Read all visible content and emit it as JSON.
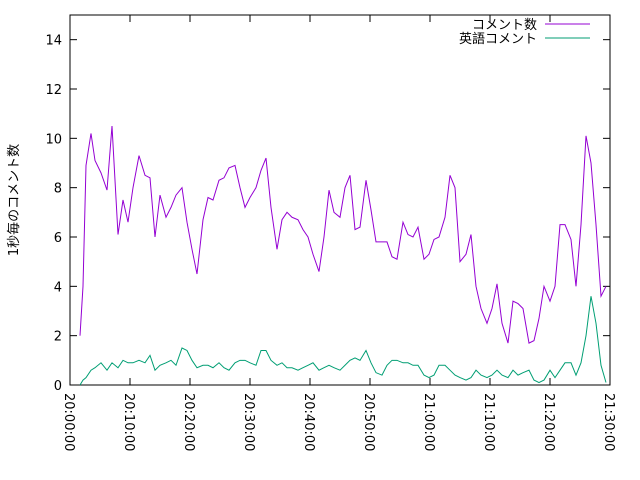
{
  "chart_data": {
    "type": "line",
    "ylabel": "1秒毎のコメント数",
    "xlim": [
      "20:00:00",
      "21:30:00"
    ],
    "xticks": [
      "20:00:00",
      "20:10:00",
      "20:20:00",
      "20:30:00",
      "20:40:00",
      "20:50:00",
      "21:00:00",
      "21:10:00",
      "21:20:00",
      "21:30:00"
    ],
    "ylim": [
      0,
      15
    ],
    "yticks": [
      0,
      2,
      4,
      6,
      8,
      10,
      12,
      14
    ],
    "legend": "top right",
    "x": [
      "20:01:40",
      "20:02:10",
      "20:02:40",
      "20:03:30",
      "20:04:10",
      "20:05:10",
      "20:06:10",
      "20:07:00",
      "20:08:00",
      "20:08:50",
      "20:09:40",
      "20:10:30",
      "20:11:30",
      "20:12:30",
      "20:13:20",
      "20:14:10",
      "20:15:00",
      "20:16:00",
      "20:16:50",
      "20:17:40",
      "20:18:40",
      "20:19:30",
      "20:20:20",
      "20:21:10",
      "20:22:10",
      "20:23:00",
      "20:23:50",
      "20:24:50",
      "20:25:40",
      "20:26:30",
      "20:27:30",
      "20:28:20",
      "20:29:10",
      "20:30:00",
      "20:31:00",
      "20:31:50",
      "20:32:40",
      "20:33:30",
      "20:34:30",
      "20:35:20",
      "20:36:10",
      "20:37:00",
      "20:38:00",
      "20:38:50",
      "20:39:40",
      "20:40:30",
      "20:41:30",
      "20:42:20",
      "20:43:10",
      "20:44:00",
      "20:45:00",
      "20:45:50",
      "20:46:40",
      "20:47:30",
      "20:48:20",
      "20:49:20",
      "20:50:10",
      "20:51:00",
      "20:52:00",
      "20:52:50",
      "20:53:40",
      "20:54:30",
      "20:55:30",
      "20:56:20",
      "20:57:10",
      "20:58:00",
      "20:59:00",
      "20:59:50",
      "21:00:40",
      "21:01:30",
      "21:02:30",
      "21:03:20",
      "21:04:10",
      "21:05:00",
      "21:06:00",
      "21:06:50",
      "21:07:40",
      "21:08:30",
      "21:09:30",
      "21:10:20",
      "21:11:10",
      "21:12:00",
      "21:13:00",
      "21:13:50",
      "21:14:40",
      "21:15:30",
      "21:16:30",
      "21:17:20",
      "21:18:10",
      "21:19:00",
      "21:20:00",
      "21:20:50",
      "21:21:40",
      "21:22:30",
      "21:23:30",
      "21:24:20",
      "21:25:10",
      "21:26:00",
      "21:26:50",
      "21:27:40",
      "21:28:30",
      "21:29:20"
    ],
    "series": [
      {
        "name": "コメント数",
        "color": "#9400d3",
        "values": [
          2.0,
          4.0,
          8.9,
          10.2,
          9.1,
          8.6,
          7.9,
          10.5,
          6.1,
          7.5,
          6.6,
          8.0,
          9.3,
          8.5,
          8.4,
          6.0,
          7.7,
          6.8,
          7.2,
          7.7,
          8.0,
          6.6,
          5.5,
          4.5,
          6.7,
          7.6,
          7.5,
          8.3,
          8.4,
          8.8,
          8.9,
          8.0,
          7.2,
          7.6,
          8.0,
          8.7,
          9.2,
          7.2,
          5.5,
          6.7,
          7.0,
          6.8,
          6.7,
          6.3,
          6.0,
          5.3,
          4.6,
          6.0,
          7.9,
          7.0,
          6.8,
          8.0,
          8.5,
          6.3,
          6.4,
          8.3,
          7.1,
          5.8,
          5.8,
          5.8,
          5.2,
          5.1,
          6.6,
          6.1,
          6.0,
          6.4,
          5.1,
          5.3,
          5.9,
          6.0,
          6.8,
          8.5,
          8.0,
          5.0,
          5.3,
          6.1,
          4.0,
          3.1,
          2.5,
          3.1,
          4.1,
          2.5,
          1.7,
          3.4,
          3.3,
          3.1,
          1.7,
          1.8,
          2.7,
          4.0,
          3.4,
          4.0,
          6.5,
          6.5,
          5.9,
          4.0,
          6.5,
          10.1,
          9.0,
          6.5,
          3.6,
          4.0
        ]
      },
      {
        "name": "英語コメント",
        "color": "#009e73",
        "values": [
          0,
          0.2,
          0.3,
          0.6,
          0.7,
          0.9,
          0.6,
          0.9,
          0.7,
          1.0,
          0.9,
          0.9,
          1.0,
          0.9,
          1.2,
          0.6,
          0.8,
          0.9,
          1.0,
          0.8,
          1.5,
          1.4,
          1.0,
          0.7,
          0.8,
          0.8,
          0.7,
          0.9,
          0.7,
          0.6,
          0.9,
          1.0,
          1.0,
          0.9,
          0.8,
          1.4,
          1.4,
          1.0,
          0.8,
          0.9,
          0.7,
          0.7,
          0.6,
          0.7,
          0.8,
          0.9,
          0.6,
          0.7,
          0.8,
          0.7,
          0.6,
          0.8,
          1.0,
          1.1,
          1.0,
          1.4,
          0.9,
          0.5,
          0.4,
          0.8,
          1.0,
          1.0,
          0.9,
          0.9,
          0.8,
          0.8,
          0.4,
          0.3,
          0.4,
          0.8,
          0.8,
          0.6,
          0.4,
          0.3,
          0.2,
          0.3,
          0.6,
          0.4,
          0.3,
          0.4,
          0.6,
          0.4,
          0.3,
          0.6,
          0.4,
          0.5,
          0.6,
          0.2,
          0.1,
          0.2,
          0.6,
          0.3,
          0.6,
          0.9,
          0.9,
          0.4,
          0.9,
          2.0,
          3.6,
          2.5,
          0.8,
          0.1
        ]
      }
    ]
  }
}
